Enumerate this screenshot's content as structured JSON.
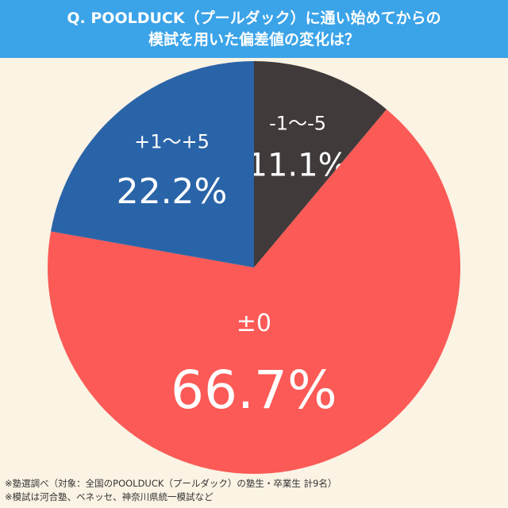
{
  "header": {
    "line1": "Q. POOLDUCK（プールダック）に通い始めてからの",
    "line2": "模試を用いた偏差値の変化は？"
  },
  "chart_data": {
    "type": "pie",
    "start": "12 o'clock",
    "direction": "clockwise",
    "slices": [
      {
        "label": "-1〜-5",
        "value": 11.1,
        "value_label": "11.1%",
        "color": "#403a3a"
      },
      {
        "label": "±0",
        "value": 66.7,
        "value_label": "66.7%",
        "color": "#fb5a56"
      },
      {
        "label": "+1〜+5",
        "value": 22.2,
        "value_label": "22.2%",
        "color": "#2a64a8"
      }
    ]
  },
  "notes": [
    "※塾選調べ（対象：全国のPOOLDUCK（プールダック）の塾生・卒業生 計9名）",
    "※模試は河合塾、ベネッセ、神奈川県統一模試など"
  ]
}
